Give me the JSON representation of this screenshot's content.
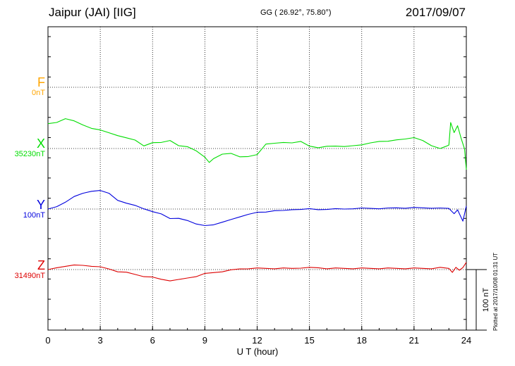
{
  "header": {
    "station": "Jaipur (JAI)  [IIG]",
    "coordinates": "GG ( 26.92°,  75.80°)",
    "date": "2017/09/07"
  },
  "plotted_note": "Plotted at 2017/10/08 01:31  UT",
  "chart_data": {
    "type": "line",
    "xlabel": "U T (hour)",
    "x_ticks": [
      "0",
      "3",
      "6",
      "9",
      "12",
      "15",
      "18",
      "21",
      "24"
    ],
    "xlim": [
      0,
      24
    ],
    "grid": true,
    "scale_bar_label": "100 nT",
    "scale_bar_nT": 100,
    "series": [
      {
        "name": "F",
        "baseline": "0nT",
        "color": "#ffa500",
        "baseline_nT": 0,
        "x": [],
        "values": []
      },
      {
        "name": "X",
        "baseline": "35230nT",
        "color": "#00dd00",
        "baseline_nT": 35230,
        "x": [
          0,
          0.5,
          1.0,
          1.5,
          2.0,
          2.5,
          3.0,
          3.5,
          4.0,
          4.5,
          5.0,
          5.5,
          6.0,
          6.5,
          7.0,
          7.5,
          8.0,
          8.5,
          9.0,
          9.25,
          9.5,
          10.0,
          10.5,
          11.0,
          11.5,
          12.0,
          12.5,
          13.0,
          13.5,
          14.0,
          14.5,
          15.0,
          15.5,
          16.0,
          16.5,
          17.0,
          17.5,
          18.0,
          18.5,
          19.0,
          19.5,
          20.0,
          20.5,
          21.0,
          21.5,
          22.0,
          22.5,
          22.8,
          23.0,
          23.1,
          23.3,
          23.5,
          23.7,
          23.9,
          24.0
        ],
        "values": [
          41,
          43,
          50,
          45,
          39,
          34,
          30,
          26,
          22,
          17,
          14,
          5,
          9,
          10,
          14,
          4,
          3,
          -3,
          -15,
          -23,
          -16,
          -10,
          -8,
          -13,
          -14,
          -10,
          8,
          8,
          10,
          10,
          11,
          4,
          2,
          3,
          4,
          4,
          4,
          6,
          10,
          11,
          12,
          15,
          15,
          18,
          14,
          4,
          0,
          4,
          5,
          43,
          27,
          37,
          17,
          0,
          -35
        ]
      },
      {
        "name": "Y",
        "baseline": "100nT",
        "color": "#0000dd",
        "baseline_nT": 100,
        "x": [
          0,
          0.5,
          1.0,
          1.5,
          2.0,
          2.5,
          3.0,
          3.5,
          4.0,
          4.5,
          5.0,
          5.5,
          6.0,
          6.5,
          7.0,
          7.5,
          8.0,
          8.5,
          9.0,
          9.5,
          10.0,
          10.5,
          11.0,
          11.5,
          12.0,
          12.5,
          13.0,
          13.5,
          14.0,
          14.5,
          15.0,
          15.5,
          16.0,
          16.5,
          17.0,
          17.5,
          18.0,
          18.5,
          19.0,
          19.5,
          20.0,
          20.5,
          21.0,
          21.5,
          22.0,
          22.5,
          23.0,
          23.3,
          23.5,
          23.8,
          24.0
        ],
        "values": [
          0,
          4,
          12,
          20,
          26,
          30,
          30,
          26,
          15,
          9,
          6,
          1,
          -5,
          -8,
          -15,
          -16,
          -19,
          -24,
          -28,
          -26,
          -21,
          -18,
          -13,
          -8,
          -6,
          -5,
          -2,
          -3,
          -1,
          0,
          0,
          -1,
          0,
          0,
          0,
          1,
          1,
          1,
          1,
          1,
          2,
          2,
          2,
          2,
          2,
          1,
          1,
          -7,
          -2,
          -20,
          5
        ]
      },
      {
        "name": "Z",
        "baseline": "31490nT",
        "color": "#dd0000",
        "baseline_nT": 31490,
        "x": [
          0,
          0.5,
          1.0,
          1.5,
          2.0,
          2.5,
          3.0,
          3.5,
          4.0,
          4.5,
          5.0,
          5.5,
          6.0,
          6.5,
          7.0,
          7.5,
          8.0,
          8.5,
          9.0,
          9.5,
          10.0,
          10.5,
          11.0,
          11.5,
          12.0,
          12.5,
          13.0,
          13.5,
          14.0,
          14.5,
          15.0,
          15.5,
          16.0,
          16.5,
          17.0,
          17.5,
          18.0,
          18.5,
          19.0,
          19.5,
          20.0,
          20.5,
          21.0,
          21.5,
          22.0,
          22.5,
          23.0,
          23.2,
          23.4,
          23.6,
          23.8,
          24.0
        ],
        "values": [
          0,
          3,
          6,
          7,
          7,
          6,
          4,
          1,
          -3,
          -5,
          -8,
          -11,
          -13,
          -16,
          -18,
          -17,
          -14,
          -11,
          -7,
          -5,
          -3,
          -1,
          1,
          2,
          2,
          2,
          2,
          2,
          2,
          3,
          3,
          3,
          2,
          2,
          2,
          2,
          2,
          2,
          2,
          2,
          2,
          2,
          2,
          2,
          2,
          3,
          2,
          -4,
          3,
          -1,
          4,
          12
        ]
      }
    ]
  }
}
